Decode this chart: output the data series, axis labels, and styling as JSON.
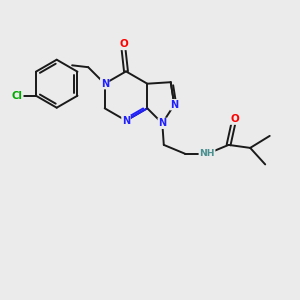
{
  "bg_color": "#ebebeb",
  "bond_color": "#1a1a1a",
  "N_color": "#2020ff",
  "O_color": "#ff0000",
  "Cl_color": "#00aa00",
  "NH_color": "#4a9090",
  "font_size": 7.0,
  "bond_width": 1.4,
  "xlim": [
    0,
    10
  ],
  "ylim": [
    0,
    10
  ]
}
